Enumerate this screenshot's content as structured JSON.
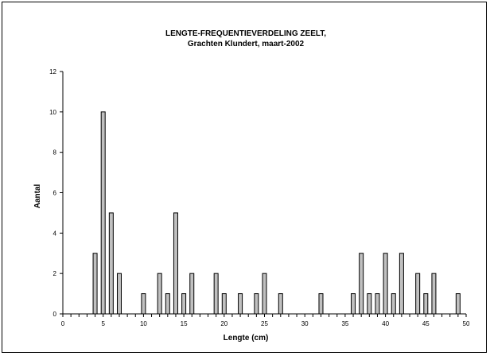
{
  "chart_data": {
    "type": "bar",
    "title_lines": [
      "LENGTE-FREQUENTIEVERDELING ZEELT,",
      "Grachten Klundert, maart-2002"
    ],
    "xlabel": "Lengte (cm)",
    "ylabel": "Aantal",
    "xlim": [
      0,
      50
    ],
    "ylim": [
      0,
      12
    ],
    "x_ticks": [
      0,
      5,
      10,
      15,
      20,
      25,
      30,
      35,
      40,
      45,
      50
    ],
    "y_ticks": [
      0,
      2,
      4,
      6,
      8,
      10,
      12
    ],
    "grid": false,
    "legend": "none",
    "bar_color": "#c0c0c0",
    "points": [
      {
        "x": 4,
        "y": 3
      },
      {
        "x": 5,
        "y": 10
      },
      {
        "x": 6,
        "y": 5
      },
      {
        "x": 7,
        "y": 2
      },
      {
        "x": 10,
        "y": 1
      },
      {
        "x": 12,
        "y": 2
      },
      {
        "x": 13,
        "y": 1
      },
      {
        "x": 14,
        "y": 5
      },
      {
        "x": 15,
        "y": 1
      },
      {
        "x": 16,
        "y": 2
      },
      {
        "x": 19,
        "y": 2
      },
      {
        "x": 20,
        "y": 1
      },
      {
        "x": 22,
        "y": 1
      },
      {
        "x": 24,
        "y": 1
      },
      {
        "x": 25,
        "y": 2
      },
      {
        "x": 27,
        "y": 1
      },
      {
        "x": 32,
        "y": 1
      },
      {
        "x": 36,
        "y": 1
      },
      {
        "x": 37,
        "y": 3
      },
      {
        "x": 38,
        "y": 1
      },
      {
        "x": 39,
        "y": 1
      },
      {
        "x": 40,
        "y": 3
      },
      {
        "x": 41,
        "y": 1
      },
      {
        "x": 42,
        "y": 3
      },
      {
        "x": 44,
        "y": 2
      },
      {
        "x": 45,
        "y": 1
      },
      {
        "x": 46,
        "y": 2
      },
      {
        "x": 49,
        "y": 1
      }
    ]
  }
}
